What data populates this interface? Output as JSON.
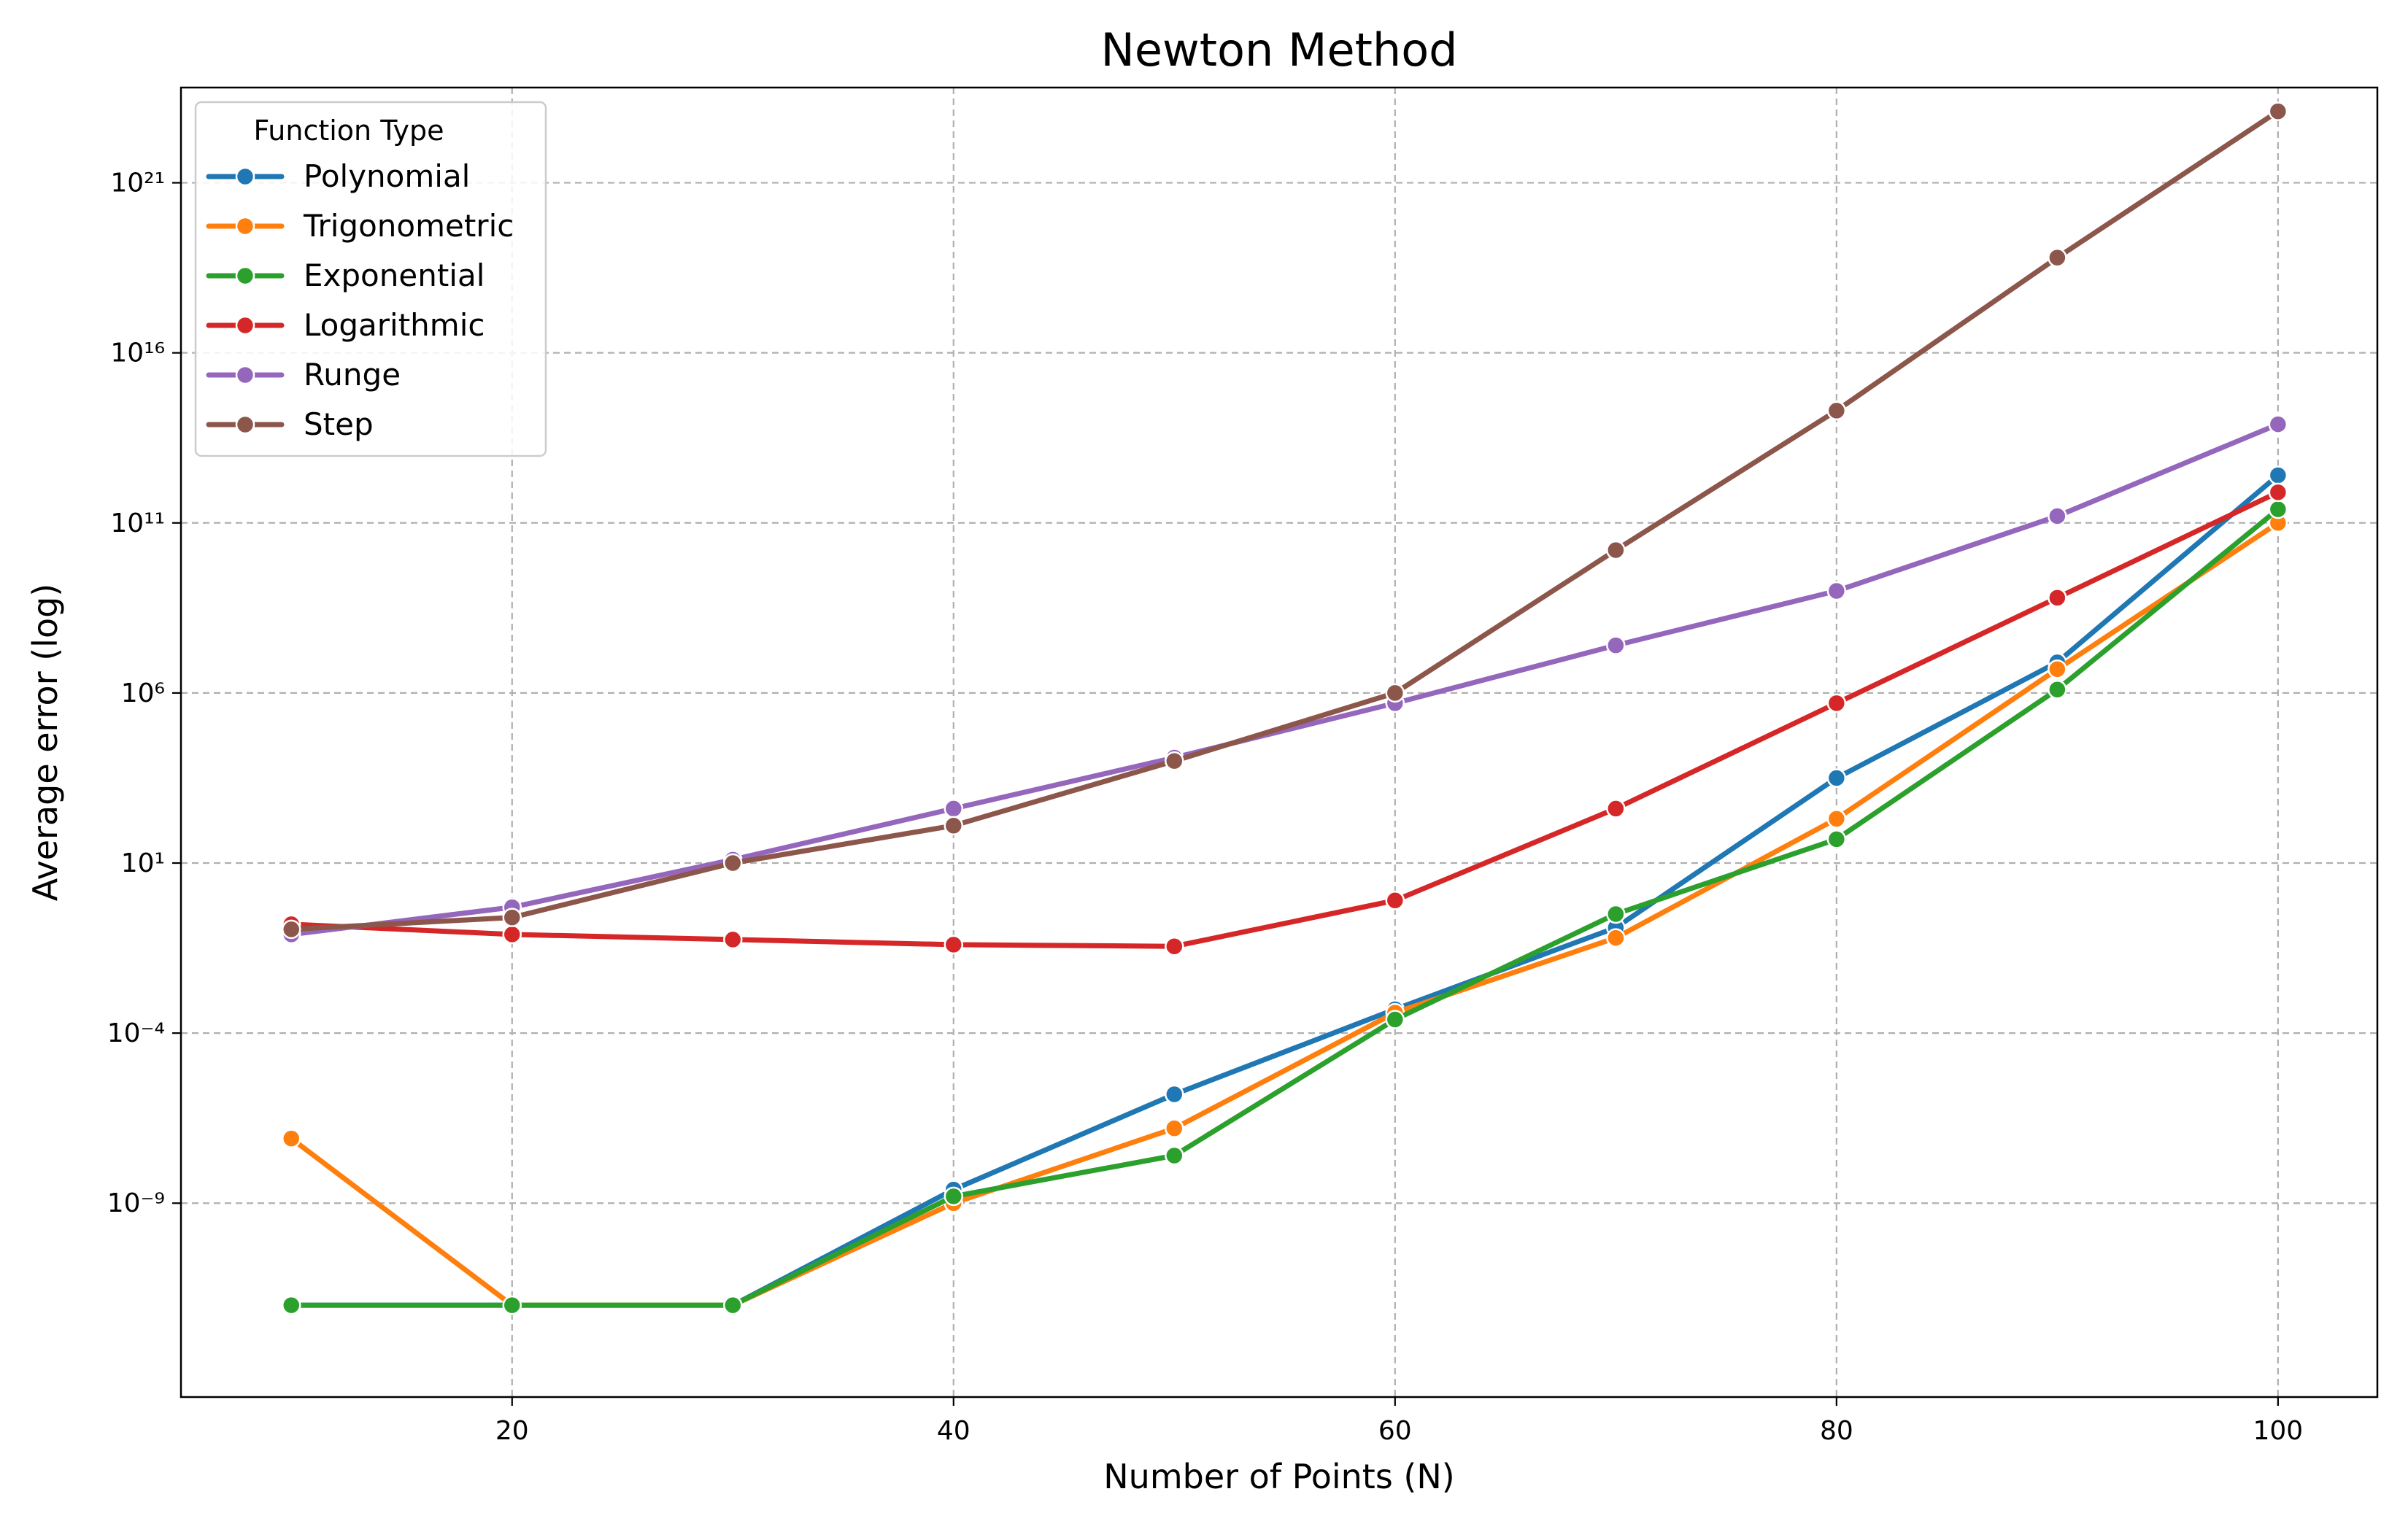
{
  "chart_data": {
    "type": "line",
    "title": "Newton Method",
    "xlabel": "Number of Points (N)",
    "ylabel": "Average error (log)",
    "x": [
      10,
      20,
      30,
      40,
      50,
      60,
      70,
      80,
      90,
      100
    ],
    "xlim": [
      5,
      104.5
    ],
    "xticks": [
      20,
      40,
      60,
      80,
      100
    ],
    "yscale": "log",
    "ylim_log10": [
      -14.7,
      23.8
    ],
    "yticks_log10": [
      -9,
      -4,
      1,
      6,
      11,
      16,
      21
    ],
    "grid": true,
    "legend": {
      "title": "Function Type",
      "position": "top-left"
    },
    "series": [
      {
        "name": "Polynomial",
        "color": "#1f77b4",
        "values_log10": [
          -12.0,
          -12.0,
          -12.0,
          -8.6,
          -5.8,
          -3.3,
          -0.9,
          3.5,
          6.9,
          12.4
        ]
      },
      {
        "name": "Trigonometric",
        "color": "#ff7f0e",
        "values_log10": [
          -7.1,
          -12.0,
          -12.0,
          -9.0,
          -6.8,
          -3.4,
          -1.2,
          2.3,
          6.7,
          11.0
        ]
      },
      {
        "name": "Exponential",
        "color": "#2ca02c",
        "values_log10": [
          -12.0,
          -12.0,
          -12.0,
          -8.8,
          -7.6,
          -3.6,
          -0.5,
          1.7,
          6.1,
          11.4
        ]
      },
      {
        "name": "Logarithmic",
        "color": "#d62728",
        "values_log10": [
          -0.8,
          -1.1,
          -1.25,
          -1.4,
          -1.45,
          -0.1,
          2.6,
          5.7,
          8.8,
          11.9
        ]
      },
      {
        "name": "Runge",
        "color": "#9467bd",
        "values_log10": [
          -1.1,
          -0.3,
          1.1,
          2.6,
          4.1,
          5.7,
          7.4,
          9.0,
          11.2,
          13.9
        ]
      },
      {
        "name": "Step",
        "color": "#8c564b",
        "values_log10": [
          -0.95,
          -0.6,
          1.0,
          2.1,
          4.0,
          6.0,
          10.2,
          14.3,
          18.8,
          23.1
        ]
      }
    ]
  }
}
